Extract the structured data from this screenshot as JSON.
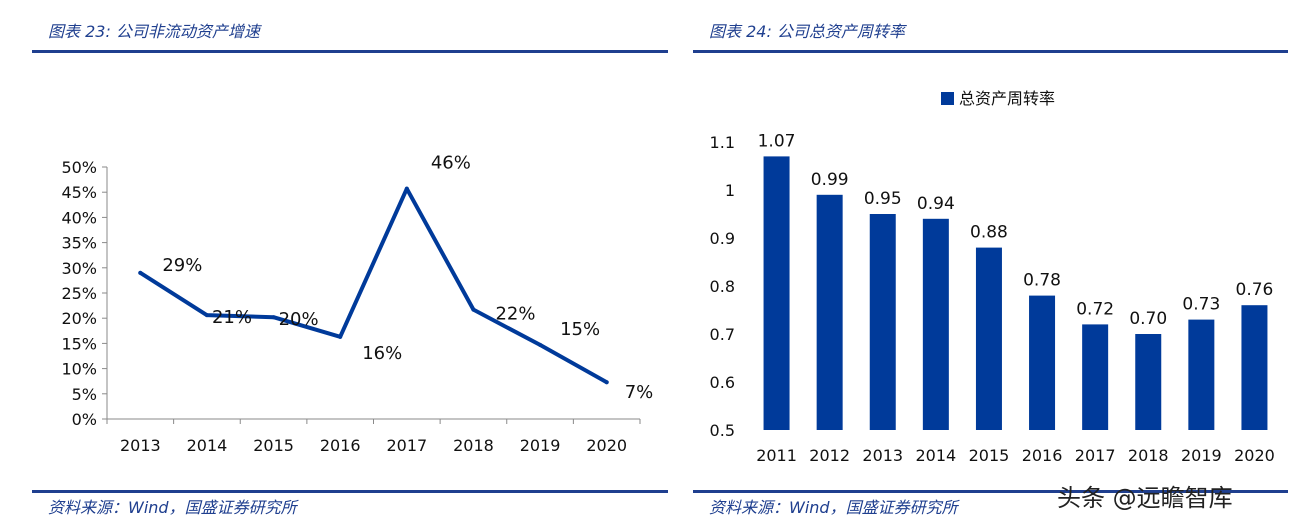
{
  "panels": [
    {
      "title": "图表 23:  公司非流动资产增速",
      "source": "资料来源：Wind，国盛证券研究所"
    },
    {
      "title": "图表 24:  公司总资产周转率",
      "source": "资料来源：Wind，国盛证券研究所"
    }
  ],
  "watermark": "头条 @远瞻智库",
  "colors": {
    "accent": "#1f3f8f",
    "series": "#003a9a"
  },
  "chart_data": [
    {
      "type": "line",
      "title": "",
      "categories": [
        "2013",
        "2014",
        "2015",
        "2016",
        "2017",
        "2018",
        "2019",
        "2020"
      ],
      "series": [
        {
          "values": [
            0.29,
            0.206,
            0.202,
            0.163,
            0.457,
            0.217,
            0.147,
            0.073
          ]
        }
      ],
      "data_labels": [
        "29%",
        "21%",
        "20%",
        "16%",
        "46%",
        "22%",
        "15%",
        "7%"
      ],
      "ylim": [
        0,
        0.5
      ],
      "yticks": [
        0,
        0.05,
        0.1,
        0.15,
        0.2,
        0.25,
        0.3,
        0.35,
        0.4,
        0.45,
        0.5
      ],
      "ytick_labels": [
        "0%",
        "5%",
        "10%",
        "15%",
        "20%",
        "25%",
        "30%",
        "35%",
        "40%",
        "45%",
        "50%"
      ],
      "grid": false,
      "legend": "none"
    },
    {
      "type": "bar",
      "title": "",
      "categories": [
        "2011",
        "2012",
        "2013",
        "2014",
        "2015",
        "2016",
        "2017",
        "2018",
        "2019",
        "2020"
      ],
      "series": [
        {
          "name": "总资产周转率",
          "values": [
            1.07,
            0.99,
            0.95,
            0.94,
            0.88,
            0.78,
            0.72,
            0.7,
            0.73,
            0.76
          ]
        }
      ],
      "data_labels": [
        "1.07",
        "0.99",
        "0.95",
        "0.94",
        "0.88",
        "0.78",
        "0.72",
        "0.70",
        "0.73",
        "0.76"
      ],
      "ylim": [
        0.5,
        1.1
      ],
      "yticks": [
        0.5,
        0.6,
        0.7,
        0.8,
        0.9,
        1.0,
        1.1
      ],
      "ytick_labels": [
        "0.5",
        "0.6",
        "0.7",
        "0.8",
        "0.9",
        "1",
        "1.1"
      ],
      "grid": false,
      "legend": "top-center"
    }
  ]
}
